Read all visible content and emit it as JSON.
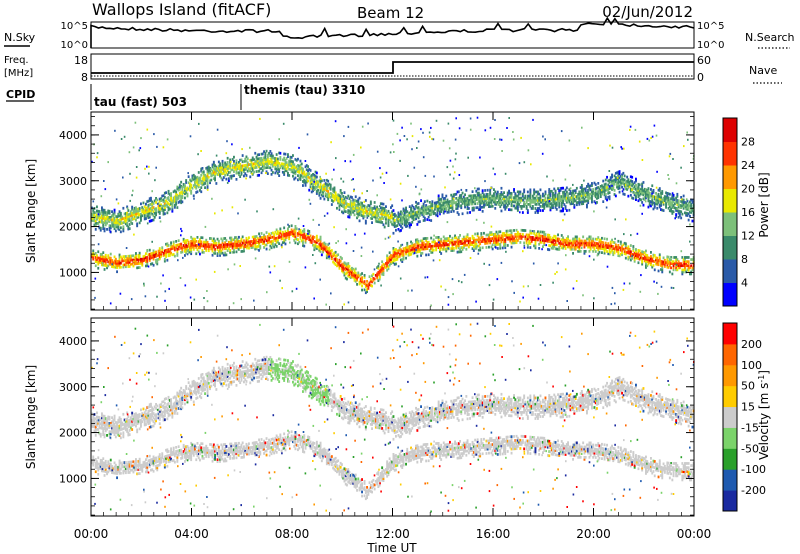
{
  "header": {
    "station": "Wallops Island (fitACF)",
    "beam": "Beam 12",
    "date": "02/Jun/2012"
  },
  "strips": {
    "nsky_label": "N.Sky",
    "nsearch_label": "N.Search",
    "nsky_ticks": [
      "10^5",
      "10^0"
    ],
    "nsearch_ticks": [
      "10^5",
      "10^0"
    ],
    "freq_label_line1": "Freq.",
    "freq_label_line2": "[MHz]",
    "freq_ticks": [
      "18",
      "8"
    ],
    "nave_label": "Nave",
    "nave_ticks": [
      "60",
      "0"
    ],
    "cpid_label": "CPID",
    "cpid_segments": [
      "tau (fast) 503",
      "themis (tau) 3310"
    ]
  },
  "chart_data": [
    {
      "type": "heatmap",
      "panel": "power",
      "ylabel": "Slant Range [km]",
      "yticks": [
        1000,
        2000,
        3000,
        4000
      ],
      "ylim": [
        180,
        4500
      ],
      "xlim_hours": [
        0,
        24
      ],
      "colorbar_label": "Power [dB]",
      "colorbar_ticks": [
        28,
        24,
        20,
        16,
        12,
        8,
        4
      ],
      "colorscale": [
        "#0000ff",
        "#2a5aa8",
        "#3a8a6a",
        "#7dc07a",
        "#e8e800",
        "#ff9900",
        "#ff3300",
        "#dd0000"
      ],
      "bands": [
        {
          "from_h": 0,
          "to_h": 24,
          "range_km": [
            1300,
            1200,
            1250,
            1450,
            1600,
            1550,
            1600,
            1700,
            1850,
            1650,
            1100,
            700,
            1350,
            1550,
            1600,
            1650,
            1700,
            1750,
            1700,
            1600,
            1600,
            1500,
            1300,
            1150,
            1150
          ],
          "power_db": 26
        },
        {
          "from_h": 0,
          "to_h": 12,
          "range_km": [
            2200,
            2100,
            2300,
            2500,
            2900,
            3200,
            3300,
            3400,
            3300,
            2900,
            2500,
            2300,
            2200
          ],
          "power_db": 16
        },
        {
          "from_h": 12,
          "to_h": 24,
          "range_km": [
            2100,
            2300,
            2450,
            2550,
            2600,
            2550,
            2550,
            2600,
            2700,
            2950,
            2700,
            2500,
            2350
          ],
          "power_db": 12
        }
      ]
    },
    {
      "type": "heatmap",
      "panel": "velocity",
      "ylabel": "Slant Range [km]",
      "yticks": [
        1000,
        2000,
        3000,
        4000
      ],
      "ylim": [
        180,
        4500
      ],
      "xlabel": "Time UT",
      "xticks": [
        "00:00",
        "04:00",
        "08:00",
        "12:00",
        "16:00",
        "20:00",
        "00:00"
      ],
      "xlim_hours": [
        0,
        24
      ],
      "colorbar_label": "Velocity [m s",
      "colorbar_label_exponent": "-1",
      "colorbar_label_close": "]",
      "colorbar_ticks": [
        "200",
        "100",
        "50",
        "15",
        "-15",
        "-50",
        "-100",
        "-200"
      ],
      "colorscale": [
        "#ff0000",
        "#ff6600",
        "#ff9900",
        "#ffcc00",
        "#cccccc",
        "#7bd36a",
        "#2aa02a",
        "#1e5ab0",
        "#1a2aa0"
      ]
    }
  ]
}
